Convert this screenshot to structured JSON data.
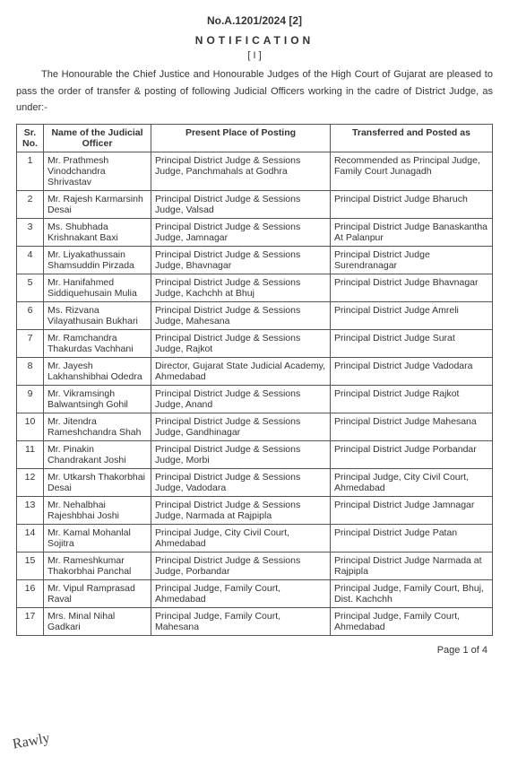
{
  "header": {
    "reference": "No.A.1201/2024 [2]",
    "title": "NOTIFICATION",
    "subnum": "[ I ]",
    "intro": "The Honourable the Chief Justice and Honourable Judges of the High Court of Gujarat are pleased to pass the order of transfer & posting of following Judicial Officers working in the cadre of District Judge, as under:-"
  },
  "table": {
    "columns": [
      "Sr. No.",
      "Name of the Judicial Officer",
      "Present Place of Posting",
      "Transferred and Posted as"
    ],
    "rows": [
      [
        "1",
        "Mr. Prathmesh Vinodchandra Shrivastav",
        "Principal District Judge & Sessions Judge, Panchmahals at Godhra",
        "Recommended as Principal Judge, Family Court Junagadh"
      ],
      [
        "2",
        "Mr. Rajesh Karmarsinh Desai",
        "Principal District Judge & Sessions Judge, Valsad",
        "Principal District Judge Bharuch"
      ],
      [
        "3",
        "Ms. Shubhada Krishnakant Baxi",
        "Principal District Judge & Sessions Judge, Jamnagar",
        "Principal District Judge Banaskantha At Palanpur"
      ],
      [
        "4",
        "Mr. Liyakathussain Shamsuddin Pirzada",
        "Principal District Judge & Sessions Judge, Bhavnagar",
        "Principal District Judge Surendranagar"
      ],
      [
        "5",
        "Mr. Hanifahmed Siddiquehusain Mulia",
        "Principal District Judge & Sessions Judge, Kachchh at Bhuj",
        "Principal District Judge Bhavnagar"
      ],
      [
        "6",
        "Ms. Rizvana Vilayathusain Bukhari",
        "Principal District Judge & Sessions Judge, Mahesana",
        "Principal District Judge Amreli"
      ],
      [
        "7",
        "Mr. Ramchandra Thakurdas Vachhani",
        "Principal District Judge & Sessions Judge, Rajkot",
        "Principal District Judge Surat"
      ],
      [
        "8",
        "Mr. Jayesh Lakhanshibhai Odedra",
        "Director, Gujarat State Judicial Academy, Ahmedabad",
        "Principal District Judge Vadodara"
      ],
      [
        "9",
        "Mr. Vikramsingh Balwantsingh Gohil",
        "Principal District Judge & Sessions Judge, Anand",
        "Principal District Judge Rajkot"
      ],
      [
        "10",
        "Mr. Jitendra Rameshchandra Shah",
        "Principal District Judge & Sessions Judge, Gandhinagar",
        "Principal District Judge Mahesana"
      ],
      [
        "11",
        "Mr. Pinakin Chandrakant Joshi",
        "Principal District Judge & Sessions Judge, Morbi",
        "Principal District Judge Porbandar"
      ],
      [
        "12",
        "Mr. Utkarsh Thakorbhai Desai",
        "Principal District Judge & Sessions Judge, Vadodara",
        "Principal Judge, City Civil Court, Ahmedabad"
      ],
      [
        "13",
        "Mr. Nehalbhai Rajeshbhai Joshi",
        "Principal District Judge & Sessions Judge, Narmada at Rajpipla",
        "Principal District Judge Jamnagar"
      ],
      [
        "14",
        "Mr. Kamal Mohanlal Sojitra",
        "Principal Judge, City Civil Court, Ahmedabad",
        "Principal District Judge Patan"
      ],
      [
        "15",
        "Mr. Rameshkumar Thakorbhai Panchal",
        "Principal District Judge & Sessions Judge, Porbandar",
        "Principal District Judge Narmada at Rajpipla"
      ],
      [
        "16",
        "Mr. Vipul Ramprasad Raval",
        "Principal Judge, Family Court, Ahmedabad",
        "Principal Judge, Family Court, Bhuj, Dist. Kachchh"
      ],
      [
        "17",
        "Mrs. Minal Nihal Gadkari",
        "Principal Judge, Family Court, Mahesana",
        "Principal Judge, Family Court, Ahmedabad"
      ]
    ]
  },
  "footer": {
    "page": "Page 1 of 4",
    "signature": "Rawly"
  }
}
